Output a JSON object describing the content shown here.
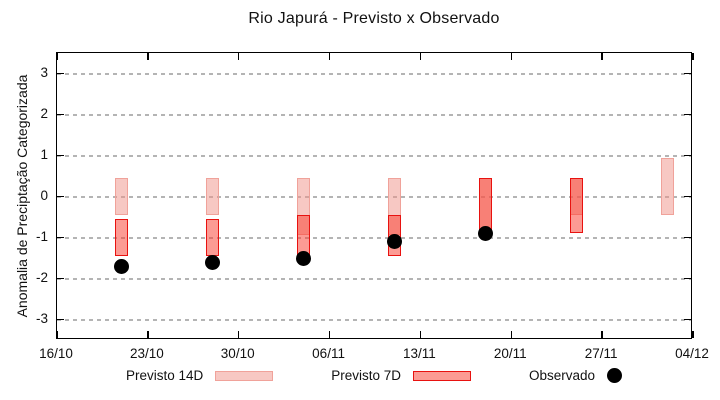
{
  "chart_data": {
    "type": "bar",
    "title": "Rio Japurá - Previsto x Observado",
    "ylabel": "Anomalia de Preciptação Categorizada",
    "xlabel": "",
    "ylim": [
      -3.5,
      3.5
    ],
    "yticks": [
      3,
      2,
      1,
      0,
      -1,
      -2,
      -3
    ],
    "grid": "horizontal-dashed",
    "legend_position": "bottom",
    "x_total_days": 49,
    "xticks": [
      {
        "label": "16/10",
        "day": 0
      },
      {
        "label": "23/10",
        "day": 7
      },
      {
        "label": "30/10",
        "day": 14
      },
      {
        "label": "06/11",
        "day": 21
      },
      {
        "label": "13/11",
        "day": 28
      },
      {
        "label": "20/11",
        "day": 35
      },
      {
        "label": "27/11",
        "day": 42
      },
      {
        "label": "04/12",
        "day": 49
      }
    ],
    "series": [
      {
        "id": "previsto14",
        "label": "Previsto 14D",
        "type": "range-bar"
      },
      {
        "id": "previsto7",
        "label": "Previsto 7D",
        "type": "range-bar"
      },
      {
        "id": "observado",
        "label": "Observado",
        "type": "point"
      }
    ],
    "groups": [
      {
        "day": 5,
        "previsto14": [
          -0.45,
          0.45
        ],
        "previsto7": [
          -1.45,
          -0.55
        ],
        "observado": -1.7
      },
      {
        "day": 12,
        "previsto14": [
          -0.45,
          0.45
        ],
        "previsto7": [
          -1.45,
          -0.55
        ],
        "observado": -1.6
      },
      {
        "day": 19,
        "previsto14": [
          -0.95,
          0.45
        ],
        "previsto7": [
          -1.45,
          -0.45
        ],
        "observado": -1.5
      },
      {
        "day": 26,
        "previsto14": [
          -0.95,
          0.45
        ],
        "previsto7": [
          -1.45,
          -0.45
        ],
        "observado": -1.1
      },
      {
        "day": 33,
        "previsto14": [
          -0.9,
          0.45
        ],
        "previsto7": [
          -0.9,
          0.45
        ],
        "observado": -0.9
      },
      {
        "day": 40,
        "previsto14": [
          -0.45,
          0.45
        ],
        "previsto7": [
          -0.9,
          0.45
        ],
        "observado": null
      },
      {
        "day": 47,
        "previsto14": [
          -0.45,
          0.95
        ],
        "previsto7": null,
        "observado": null
      }
    ],
    "colors": {
      "previsto14_fill": "#f7c8c3",
      "previsto14_border": "#f0a29a",
      "previsto7_fill": "#fc9b94",
      "previsto7_border": "#e81210",
      "overlap_fill": "#f8837c",
      "observado": "#000000",
      "grid": "#b4b4b4",
      "frame": "#000000"
    }
  }
}
